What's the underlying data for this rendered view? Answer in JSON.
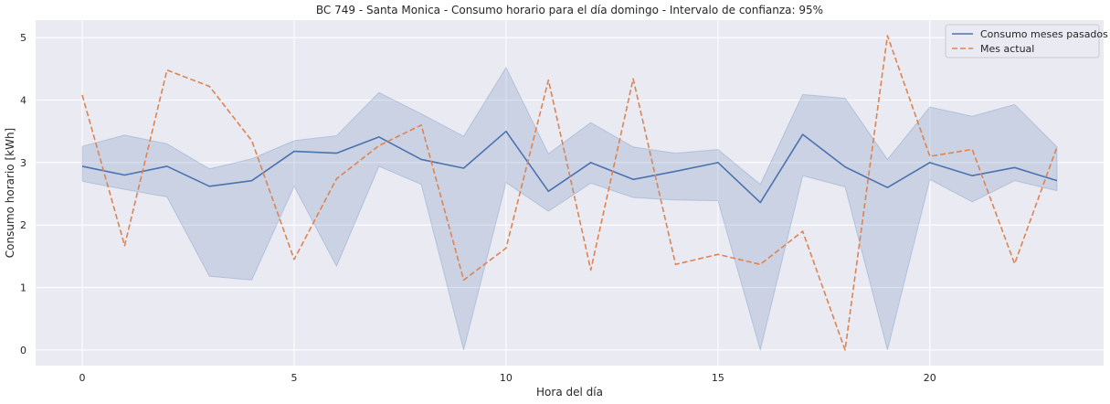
{
  "chart_data": {
    "type": "line",
    "title": "BC 749 - Santa Monica - Consumo horario para el día domingo - Intervalo de confianza: 95%",
    "xlabel": "Hora del día",
    "ylabel": "Consumo horario [kWh]",
    "xlim": [
      -1.1,
      24.1
    ],
    "ylim": [
      -0.25,
      5.28
    ],
    "xticks": [
      0,
      5,
      10,
      15,
      20
    ],
    "yticks": [
      0,
      1,
      2,
      3,
      4,
      5
    ],
    "grid": true,
    "legend_position": "top-right",
    "x": [
      0,
      1,
      2,
      3,
      4,
      5,
      6,
      7,
      8,
      9,
      10,
      11,
      12,
      13,
      14,
      15,
      16,
      17,
      18,
      19,
      20,
      21,
      22,
      23
    ],
    "series": [
      {
        "name": "Consumo meses pasados",
        "style": "solid",
        "color": "#4c72b0",
        "values": [
          2.94,
          2.8,
          2.94,
          2.62,
          2.71,
          3.18,
          3.15,
          3.41,
          3.05,
          2.91,
          3.5,
          2.54,
          3.0,
          2.73,
          2.86,
          3.0,
          2.36,
          3.45,
          2.93,
          2.6,
          3.0,
          2.79,
          2.92,
          2.71
        ]
      },
      {
        "name": "Mes actual",
        "style": "dashed",
        "color": "#dd8452",
        "values": [
          4.08,
          1.67,
          4.48,
          4.22,
          3.35,
          1.45,
          2.74,
          3.27,
          3.6,
          1.12,
          1.63,
          4.32,
          1.28,
          4.34,
          1.37,
          1.53,
          1.37,
          1.9,
          0.0,
          5.03,
          3.1,
          3.21,
          1.38,
          3.25
        ]
      }
    ],
    "confidence_band": {
      "series": "Consumo meses pasados",
      "color": "#4c72b0",
      "lower": [
        2.7,
        2.57,
        2.45,
        1.18,
        1.12,
        2.62,
        1.34,
        2.94,
        2.65,
        0.0,
        2.68,
        2.22,
        2.67,
        2.44,
        2.4,
        2.39,
        0.0,
        2.79,
        2.61,
        0.0,
        2.73,
        2.37,
        2.71,
        2.55
      ],
      "upper": [
        3.26,
        3.44,
        3.3,
        2.9,
        3.06,
        3.35,
        3.43,
        4.12,
        3.78,
        3.42,
        4.52,
        3.14,
        3.64,
        3.25,
        3.15,
        3.21,
        2.65,
        4.09,
        4.03,
        3.05,
        3.89,
        3.74,
        3.93,
        3.25
      ]
    }
  }
}
